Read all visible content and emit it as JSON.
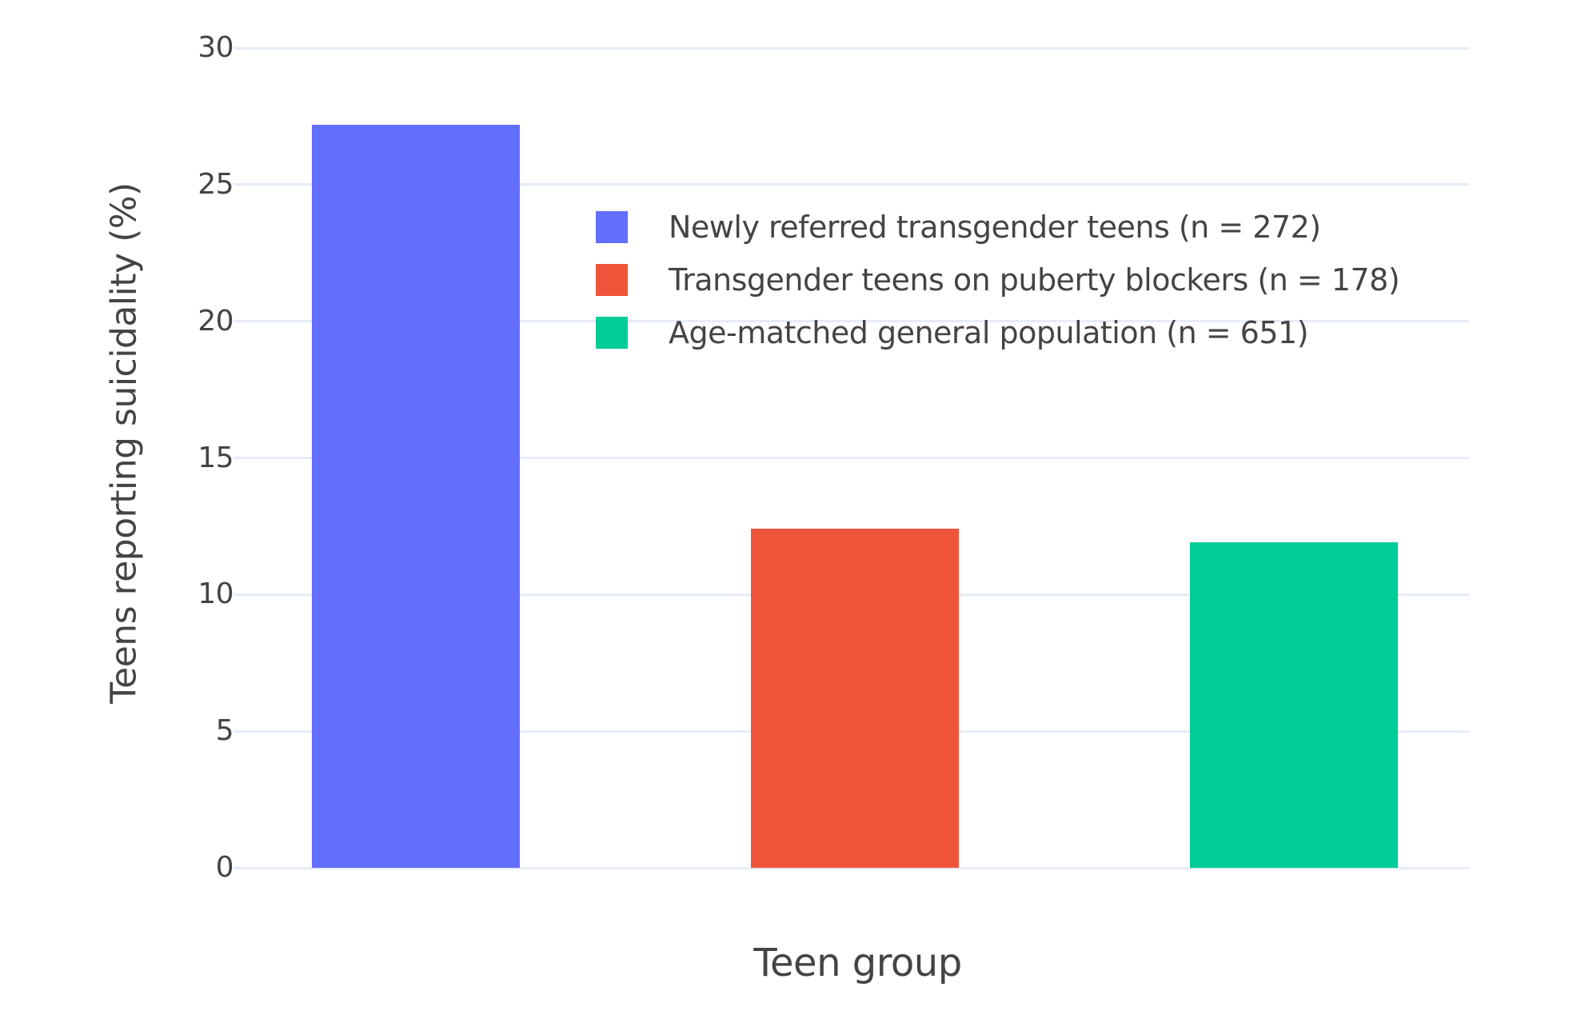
{
  "chart_data": {
    "type": "bar",
    "title": "",
    "xlabel": "Teen group",
    "ylabel": "Teens reporting suicidality (%)",
    "categories": [
      "Newly referred transgender teens (n = 272)",
      "Transgender teens on puberty blockers (n = 178)",
      "Age-matched general population (n = 651)"
    ],
    "values": [
      27.2,
      12.4,
      11.9
    ],
    "bar_colors": [
      "#636EFA",
      "#EF553B",
      "#00CC96"
    ],
    "ylim": [
      0,
      30
    ],
    "yticks": [
      0,
      5,
      10,
      15,
      20,
      25,
      30
    ],
    "x_tick_labels": [],
    "grid": true,
    "grid_color": "#E5ECF6",
    "text_color": "#444444",
    "background_color": "#FFFFFF",
    "legend": {
      "position": "inside-top-right",
      "entries": [
        {
          "label": "Newly referred transgender teens (n = 272)",
          "color": "#636EFA"
        },
        {
          "label": "Transgender teens on puberty blockers (n = 178)",
          "color": "#EF553B"
        },
        {
          "label": "Age-matched general population (n = 651)",
          "color": "#00CC96"
        }
      ]
    }
  }
}
